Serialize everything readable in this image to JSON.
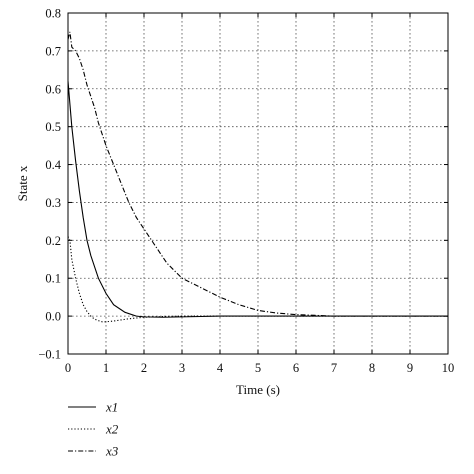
{
  "chart_data": {
    "type": "line",
    "title": "",
    "xlabel": "Time (s)",
    "ylabel": "State x",
    "xlim": [
      0,
      10
    ],
    "ylim": [
      -0.1,
      0.8
    ],
    "xticks": [
      "0",
      "1",
      "2",
      "3",
      "4",
      "5",
      "6",
      "7",
      "8",
      "9",
      "10"
    ],
    "yticks": [
      "−0.1",
      "0.0",
      "0.1",
      "0.2",
      "0.3",
      "0.4",
      "0.5",
      "0.6",
      "0.7",
      "0.8"
    ],
    "grid": true,
    "legend_position": "bottom-left",
    "series": [
      {
        "name": "x1",
        "style": "solid",
        "x": [
          0,
          0.05,
          0.1,
          0.2,
          0.3,
          0.4,
          0.5,
          0.6,
          0.8,
          1.0,
          1.2,
          1.5,
          1.8,
          2.0,
          2.5,
          3.0,
          3.5,
          4.0,
          4.5,
          5.0,
          6.0,
          7.0,
          8.0,
          9.0,
          10.0
        ],
        "y": [
          0.62,
          0.56,
          0.5,
          0.41,
          0.33,
          0.26,
          0.2,
          0.16,
          0.1,
          0.06,
          0.03,
          0.01,
          0.0,
          -0.002,
          -0.003,
          -0.002,
          -0.001,
          0.0,
          0.0,
          0.0,
          0.0,
          0.0,
          0.0,
          0.0,
          0.0
        ]
      },
      {
        "name": "x2",
        "style": "dotted",
        "x": [
          0,
          0.05,
          0.1,
          0.2,
          0.3,
          0.4,
          0.5,
          0.6,
          0.7,
          0.8,
          0.9,
          1.0,
          1.2,
          1.4,
          1.6,
          1.8,
          2.0,
          2.5,
          3.0,
          4.0,
          5.0,
          6.0,
          7.0,
          8.0,
          9.0,
          10.0
        ],
        "y": [
          0.21,
          0.2,
          0.15,
          0.1,
          0.06,
          0.03,
          0.012,
          0.0,
          -0.008,
          -0.012,
          -0.015,
          -0.015,
          -0.013,
          -0.01,
          -0.007,
          -0.005,
          -0.003,
          -0.001,
          0.0,
          0.0,
          0.0,
          0.0,
          0.0,
          0.0,
          0.0,
          0.0
        ]
      },
      {
        "name": "x3",
        "style": "dashdot",
        "x": [
          0,
          0.05,
          0.1,
          0.2,
          0.3,
          0.4,
          0.5,
          0.6,
          0.7,
          0.8,
          0.9,
          1.0,
          1.2,
          1.4,
          1.6,
          1.8,
          2.0,
          2.2,
          2.4,
          2.6,
          2.8,
          3.0,
          3.3,
          3.6,
          4.0,
          4.5,
          5.0,
          5.5,
          6.0,
          6.5,
          7.0,
          8.0,
          9.0,
          10.0
        ],
        "y": [
          0.73,
          0.75,
          0.71,
          0.7,
          0.68,
          0.65,
          0.61,
          0.58,
          0.55,
          0.51,
          0.48,
          0.45,
          0.4,
          0.35,
          0.3,
          0.26,
          0.23,
          0.2,
          0.17,
          0.14,
          0.12,
          0.1,
          0.085,
          0.07,
          0.05,
          0.03,
          0.015,
          0.008,
          0.004,
          0.002,
          0.0,
          0.0,
          0.0,
          0.0
        ]
      }
    ]
  }
}
